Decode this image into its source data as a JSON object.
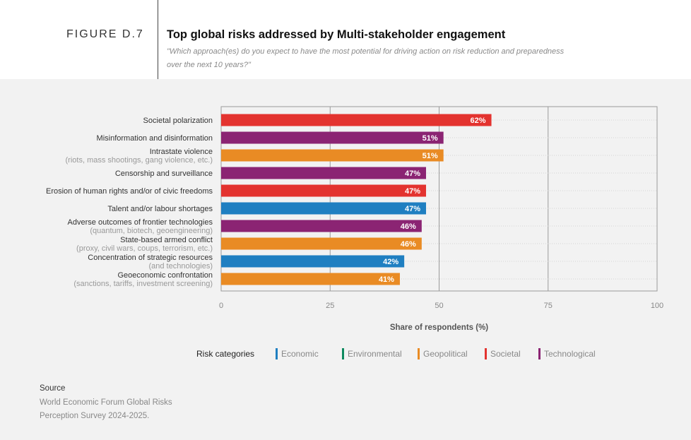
{
  "figure_label": "FIGURE D.7",
  "title": "Top global risks addressed by Multi-stakeholder engagement",
  "subtitle_lines": [
    "\"Which approach(es) do you expect to have the most potential for driving action on risk reduction and preparedness",
    "over the next 10 years?\""
  ],
  "colors": {
    "Economic": "#1f7fc1",
    "Environmental": "#0e8a5f",
    "Geopolitical": "#e98b24",
    "Societal": "#e3332f",
    "Technological": "#8b2473"
  },
  "chart_data": {
    "type": "bar",
    "orientation": "horizontal",
    "categories": [
      {
        "label": "Societal polarization",
        "sublabel": "",
        "category": "Societal",
        "value": 62
      },
      {
        "label": "Misinformation and disinformation",
        "sublabel": "",
        "category": "Technological",
        "value": 51
      },
      {
        "label": "Intrastate violence",
        "sublabel": "(riots, mass shootings, gang violence, etc.)",
        "category": "Geopolitical",
        "value": 51
      },
      {
        "label": "Censorship and surveillance",
        "sublabel": "",
        "category": "Technological",
        "value": 47
      },
      {
        "label": "Erosion of human rights and/or of civic freedoms",
        "sublabel": "",
        "category": "Societal",
        "value": 47
      },
      {
        "label": "Talent and/or labour shortages",
        "sublabel": "",
        "category": "Economic",
        "value": 47
      },
      {
        "label": "Adverse outcomes of frontier technologies",
        "sublabel": "(quantum, biotech, geoengineering)",
        "category": "Technological",
        "value": 46
      },
      {
        "label": "State-based armed conflict",
        "sublabel": "(proxy, civil wars, coups, terrorism, etc.)",
        "category": "Geopolitical",
        "value": 46
      },
      {
        "label": "Concentration of strategic resources",
        "sublabel": "(and technologies)",
        "category": "Economic",
        "value": 42
      },
      {
        "label": "Geoeconomic confrontation",
        "sublabel": "(sanctions, tariffs, investment screening)",
        "category": "Geopolitical",
        "value": 41
      }
    ],
    "value_suffix": "%",
    "xlabel": "Share of respondents (%)",
    "xlim": [
      0,
      100
    ],
    "xticks": [
      0,
      25,
      50,
      75,
      100
    ],
    "grid": true
  },
  "legend": {
    "title": "Risk categories",
    "items": [
      "Economic",
      "Environmental",
      "Geopolitical",
      "Societal",
      "Technological"
    ]
  },
  "source": {
    "title": "Source",
    "lines": [
      "World Economic Forum Global Risks",
      "Perception Survey 2024-2025."
    ]
  }
}
